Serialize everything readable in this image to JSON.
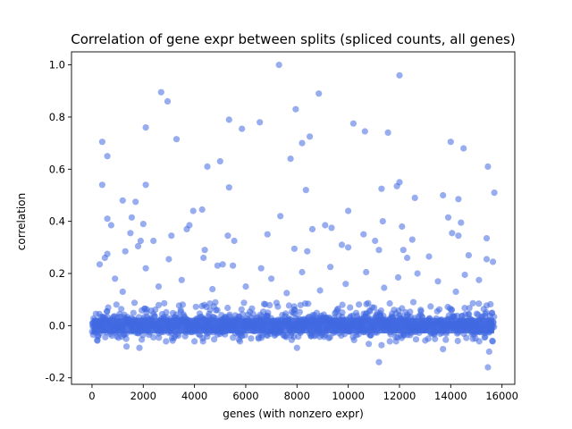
{
  "chart_data": {
    "type": "scatter",
    "title": "Correlation of gene expr between splits (spliced counts, all genes)",
    "xlabel": "genes (with nonzero expr)",
    "ylabel": "correlation",
    "xlim": [
      -800,
      16500
    ],
    "ylim": [
      -0.225,
      1.05
    ],
    "xticks": [
      0,
      2000,
      4000,
      6000,
      8000,
      10000,
      12000,
      14000,
      16000
    ],
    "yticks": [
      -0.2,
      0.0,
      0.2,
      0.4,
      0.6,
      0.8,
      1.0
    ],
    "grid": false,
    "legend": "none",
    "marker_color": "#4169e1",
    "marker_alpha": 0.55,
    "n_points_approx": 15700,
    "dense_band": {
      "x_range": [
        0,
        15700
      ],
      "center": 0.0,
      "typical_spread": [
        -0.06,
        0.07
      ]
    },
    "outliers": [
      {
        "x": 7300,
        "y": 1.0
      },
      {
        "x": 12000,
        "y": 0.96
      },
      {
        "x": 2700,
        "y": 0.895
      },
      {
        "x": 8850,
        "y": 0.89
      },
      {
        "x": 2950,
        "y": 0.86
      },
      {
        "x": 7950,
        "y": 0.83
      },
      {
        "x": 5350,
        "y": 0.79
      },
      {
        "x": 6550,
        "y": 0.78
      },
      {
        "x": 10200,
        "y": 0.775
      },
      {
        "x": 2100,
        "y": 0.76
      },
      {
        "x": 5850,
        "y": 0.755
      },
      {
        "x": 10650,
        "y": 0.745
      },
      {
        "x": 11550,
        "y": 0.74
      },
      {
        "x": 8500,
        "y": 0.725
      },
      {
        "x": 3300,
        "y": 0.715
      },
      {
        "x": 14000,
        "y": 0.705
      },
      {
        "x": 400,
        "y": 0.705
      },
      {
        "x": 8200,
        "y": 0.7
      },
      {
        "x": 14500,
        "y": 0.68
      },
      {
        "x": 600,
        "y": 0.65
      },
      {
        "x": 7750,
        "y": 0.64
      },
      {
        "x": 5000,
        "y": 0.63
      },
      {
        "x": 4500,
        "y": 0.61
      },
      {
        "x": 15450,
        "y": 0.61
      },
      {
        "x": 12000,
        "y": 0.55
      },
      {
        "x": 400,
        "y": 0.54
      },
      {
        "x": 2100,
        "y": 0.54
      },
      {
        "x": 11900,
        "y": 0.535
      },
      {
        "x": 5350,
        "y": 0.53
      },
      {
        "x": 11300,
        "y": 0.525
      },
      {
        "x": 8350,
        "y": 0.52
      },
      {
        "x": 15700,
        "y": 0.51
      },
      {
        "x": 13700,
        "y": 0.5
      },
      {
        "x": 12600,
        "y": 0.49
      },
      {
        "x": 14300,
        "y": 0.485
      },
      {
        "x": 1200,
        "y": 0.48
      },
      {
        "x": 1700,
        "y": 0.475
      },
      {
        "x": 3950,
        "y": 0.44
      },
      {
        "x": 10000,
        "y": 0.44
      },
      {
        "x": 4300,
        "y": 0.445
      },
      {
        "x": 7350,
        "y": 0.42
      },
      {
        "x": 1550,
        "y": 0.415
      },
      {
        "x": 13900,
        "y": 0.415
      },
      {
        "x": 600,
        "y": 0.41
      },
      {
        "x": 11350,
        "y": 0.4
      },
      {
        "x": 14400,
        "y": 0.395
      },
      {
        "x": 2000,
        "y": 0.39
      },
      {
        "x": 9100,
        "y": 0.385
      },
      {
        "x": 3800,
        "y": 0.385
      },
      {
        "x": 750,
        "y": 0.385
      },
      {
        "x": 12100,
        "y": 0.38
      },
      {
        "x": 9350,
        "y": 0.375
      },
      {
        "x": 3700,
        "y": 0.37
      },
      {
        "x": 8600,
        "y": 0.37
      },
      {
        "x": 1500,
        "y": 0.355
      },
      {
        "x": 14050,
        "y": 0.355
      },
      {
        "x": 6850,
        "y": 0.35
      },
      {
        "x": 10600,
        "y": 0.35
      },
      {
        "x": 14300,
        "y": 0.345
      },
      {
        "x": 3100,
        "y": 0.345
      },
      {
        "x": 5300,
        "y": 0.345
      },
      {
        "x": 15400,
        "y": 0.335
      },
      {
        "x": 1900,
        "y": 0.325
      },
      {
        "x": 12500,
        "y": 0.33
      },
      {
        "x": 11050,
        "y": 0.325
      },
      {
        "x": 5550,
        "y": 0.325
      },
      {
        "x": 2400,
        "y": 0.325
      },
      {
        "x": 9750,
        "y": 0.31
      },
      {
        "x": 1800,
        "y": 0.305
      },
      {
        "x": 10000,
        "y": 0.3
      },
      {
        "x": 7900,
        "y": 0.295
      },
      {
        "x": 12150,
        "y": 0.29
      },
      {
        "x": 11200,
        "y": 0.29
      },
      {
        "x": 8400,
        "y": 0.285
      },
      {
        "x": 4400,
        "y": 0.29
      },
      {
        "x": 1300,
        "y": 0.285
      },
      {
        "x": 600,
        "y": 0.275
      },
      {
        "x": 14700,
        "y": 0.27
      },
      {
        "x": 13150,
        "y": 0.265
      },
      {
        "x": 4350,
        "y": 0.26
      },
      {
        "x": 500,
        "y": 0.26
      },
      {
        "x": 15400,
        "y": 0.255
      },
      {
        "x": 12300,
        "y": 0.26
      },
      {
        "x": 3000,
        "y": 0.255
      },
      {
        "x": 15650,
        "y": 0.245
      },
      {
        "x": 300,
        "y": 0.235
      },
      {
        "x": 5100,
        "y": 0.235
      },
      {
        "x": 5500,
        "y": 0.23
      },
      {
        "x": 4900,
        "y": 0.23
      },
      {
        "x": 9300,
        "y": 0.225
      },
      {
        "x": 2100,
        "y": 0.22
      },
      {
        "x": 6600,
        "y": 0.22
      },
      {
        "x": 8200,
        "y": 0.205
      },
      {
        "x": 10700,
        "y": 0.205
      },
      {
        "x": 12700,
        "y": 0.2
      },
      {
        "x": 14550,
        "y": 0.195
      },
      {
        "x": 900,
        "y": 0.18
      },
      {
        "x": 11950,
        "y": 0.185
      },
      {
        "x": 7000,
        "y": 0.18
      },
      {
        "x": 3500,
        "y": 0.175
      },
      {
        "x": 13500,
        "y": 0.17
      },
      {
        "x": 15100,
        "y": 0.175
      },
      {
        "x": 9900,
        "y": 0.16
      },
      {
        "x": 6000,
        "y": 0.15
      },
      {
        "x": 2600,
        "y": 0.15
      },
      {
        "x": 11400,
        "y": 0.145
      },
      {
        "x": 4700,
        "y": 0.14
      },
      {
        "x": 8900,
        "y": 0.135
      },
      {
        "x": 14200,
        "y": 0.13
      },
      {
        "x": 1200,
        "y": 0.13
      },
      {
        "x": 7600,
        "y": 0.125
      },
      {
        "x": 11200,
        "y": -0.14
      },
      {
        "x": 15450,
        "y": -0.16
      },
      {
        "x": 15500,
        "y": -0.1
      },
      {
        "x": 1850,
        "y": -0.085
      },
      {
        "x": 8000,
        "y": -0.085
      },
      {
        "x": 13700,
        "y": -0.09
      },
      {
        "x": 1350,
        "y": -0.08
      },
      {
        "x": 11300,
        "y": -0.075
      },
      {
        "x": 10800,
        "y": -0.07
      },
      {
        "x": 200,
        "y": -0.055
      },
      {
        "x": 4000,
        "y": -0.06
      },
      {
        "x": 6500,
        "y": -0.05
      }
    ]
  }
}
